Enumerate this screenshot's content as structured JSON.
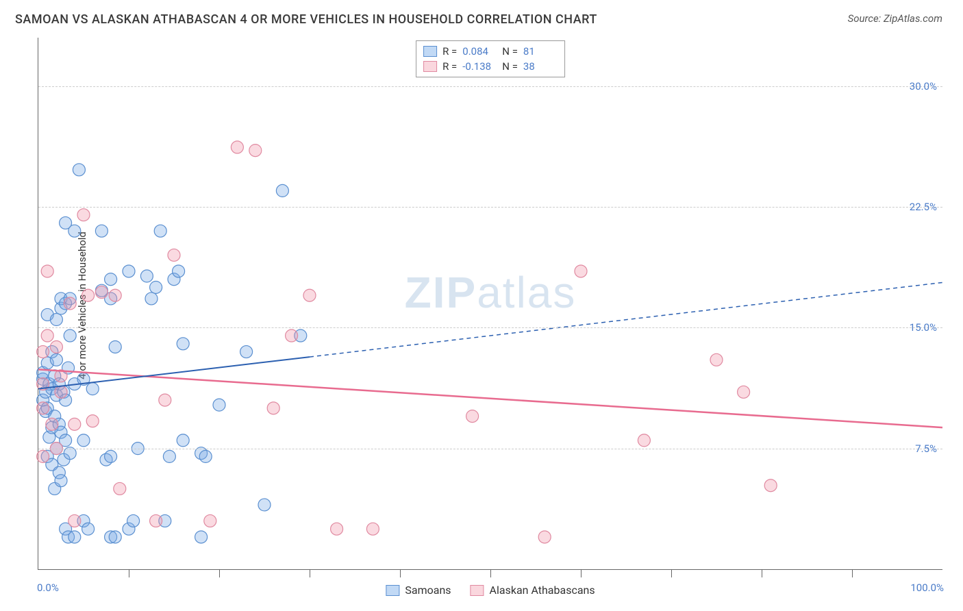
{
  "title": "SAMOAN VS ALASKAN ATHABASCAN 4 OR MORE VEHICLES IN HOUSEHOLD CORRELATION CHART",
  "source": "Source: ZipAtlas.com",
  "watermark_a": "ZIP",
  "watermark_b": "atlas",
  "ylabel": "4 or more Vehicles in Household",
  "chart": {
    "type": "scatter",
    "xlim": [
      0,
      100
    ],
    "ylim": [
      0,
      33
    ],
    "x_ticks": [
      0,
      100
    ],
    "x_tick_labels": [
      "0.0%",
      "100.0%"
    ],
    "x_minor_ticks": [
      10,
      20,
      30,
      40,
      50,
      60,
      70,
      80,
      90
    ],
    "y_gridlines": [
      7.5,
      15.0,
      22.5,
      30.0
    ],
    "y_tick_labels": [
      "7.5%",
      "15.0%",
      "22.5%",
      "30.0%"
    ],
    "background_color": "#ffffff",
    "grid_color": "#cccccc",
    "axis_color": "#666666",
    "tick_label_color": "#4a7bc8",
    "point_radius": 9,
    "series": {
      "samoans": {
        "label": "Samoans",
        "fill": "rgba(120,170,230,0.35)",
        "stroke": "#5a8fd0",
        "R": "0.084",
        "N": "81",
        "trend": {
          "y_at_x0": 11.2,
          "y_at_x100": 17.8,
          "solid_until_x": 30,
          "color": "#2b5fb0",
          "width": 2
        },
        "points": [
          [
            0.5,
            10.5
          ],
          [
            0.5,
            11.8
          ],
          [
            0.5,
            12.2
          ],
          [
            0.8,
            9.8
          ],
          [
            0.8,
            11.0
          ],
          [
            1.0,
            7.0
          ],
          [
            1.0,
            10.0
          ],
          [
            1.0,
            12.8
          ],
          [
            1.0,
            15.8
          ],
          [
            1.2,
            8.2
          ],
          [
            1.2,
            11.5
          ],
          [
            1.5,
            6.5
          ],
          [
            1.5,
            8.8
          ],
          [
            1.5,
            11.2
          ],
          [
            1.5,
            13.5
          ],
          [
            1.8,
            5.0
          ],
          [
            1.8,
            9.5
          ],
          [
            1.8,
            12.0
          ],
          [
            2.0,
            7.5
          ],
          [
            2.0,
            10.8
          ],
          [
            2.0,
            13.0
          ],
          [
            2.0,
            15.5
          ],
          [
            2.3,
            6.0
          ],
          [
            2.3,
            9.0
          ],
          [
            2.3,
            11.5
          ],
          [
            2.5,
            5.5
          ],
          [
            2.5,
            8.5
          ],
          [
            2.5,
            16.2
          ],
          [
            2.5,
            16.8
          ],
          [
            2.8,
            6.8
          ],
          [
            2.8,
            11.0
          ],
          [
            3.0,
            2.5
          ],
          [
            3.0,
            8.0
          ],
          [
            3.0,
            10.5
          ],
          [
            3.0,
            16.5
          ],
          [
            3.0,
            21.5
          ],
          [
            3.3,
            2.0
          ],
          [
            3.3,
            12.5
          ],
          [
            3.5,
            7.2
          ],
          [
            3.5,
            14.5
          ],
          [
            3.5,
            16.8
          ],
          [
            4.0,
            2.0
          ],
          [
            4.0,
            11.5
          ],
          [
            4.0,
            21.0
          ],
          [
            4.5,
            24.8
          ],
          [
            5.0,
            3.0
          ],
          [
            5.0,
            8.0
          ],
          [
            5.0,
            11.8
          ],
          [
            5.5,
            2.5
          ],
          [
            6.0,
            11.2
          ],
          [
            7.0,
            21.0
          ],
          [
            7.0,
            17.3
          ],
          [
            7.5,
            6.8
          ],
          [
            8.0,
            2.0
          ],
          [
            8.0,
            7.0
          ],
          [
            8.0,
            18.0
          ],
          [
            8.0,
            16.8
          ],
          [
            8.5,
            2.0
          ],
          [
            8.5,
            13.8
          ],
          [
            10.0,
            2.5
          ],
          [
            10.0,
            18.5
          ],
          [
            10.5,
            3.0
          ],
          [
            11.0,
            7.5
          ],
          [
            12.0,
            18.2
          ],
          [
            12.5,
            16.8
          ],
          [
            13.0,
            17.5
          ],
          [
            13.5,
            21.0
          ],
          [
            14.0,
            3.0
          ],
          [
            14.5,
            7.0
          ],
          [
            15.0,
            18.0
          ],
          [
            15.5,
            18.5
          ],
          [
            16.0,
            14.0
          ],
          [
            16.0,
            8.0
          ],
          [
            18.0,
            2.0
          ],
          [
            18.0,
            7.2
          ],
          [
            18.5,
            7.0
          ],
          [
            20.0,
            10.2
          ],
          [
            23.0,
            13.5
          ],
          [
            25.0,
            4.0
          ],
          [
            27.0,
            23.5
          ],
          [
            29.0,
            14.5
          ]
        ]
      },
      "athabascans": {
        "label": "Alaskan Athabascans",
        "fill": "rgba(240,150,170,0.35)",
        "stroke": "#e089a0",
        "R": "-0.138",
        "N": "38",
        "trend": {
          "y_at_x0": 12.4,
          "y_at_x100": 8.8,
          "solid_until_x": 100,
          "color": "#e86b8f",
          "width": 2.5
        },
        "points": [
          [
            0.5,
            7.0
          ],
          [
            0.5,
            10.0
          ],
          [
            0.5,
            11.5
          ],
          [
            0.5,
            13.5
          ],
          [
            1.0,
            14.5
          ],
          [
            1.0,
            18.5
          ],
          [
            1.5,
            9.0
          ],
          [
            2.0,
            7.5
          ],
          [
            2.0,
            13.8
          ],
          [
            2.5,
            11.0
          ],
          [
            2.5,
            12.0
          ],
          [
            3.5,
            16.5
          ],
          [
            4.0,
            3.0
          ],
          [
            4.0,
            9.0
          ],
          [
            5.0,
            22.0
          ],
          [
            5.5,
            17.0
          ],
          [
            6.0,
            9.2
          ],
          [
            7.0,
            17.2
          ],
          [
            8.5,
            17.0
          ],
          [
            9.0,
            5.0
          ],
          [
            13.0,
            3.0
          ],
          [
            14.0,
            10.5
          ],
          [
            15.0,
            19.5
          ],
          [
            19.0,
            3.0
          ],
          [
            22.0,
            26.2
          ],
          [
            24.0,
            26.0
          ],
          [
            26.0,
            10.0
          ],
          [
            28.0,
            14.5
          ],
          [
            30.0,
            17.0
          ],
          [
            33.0,
            2.5
          ],
          [
            37.0,
            2.5
          ],
          [
            48.0,
            9.5
          ],
          [
            56.0,
            2.0
          ],
          [
            60.0,
            18.5
          ],
          [
            67.0,
            8.0
          ],
          [
            75.0,
            13.0
          ],
          [
            78.0,
            11.0
          ],
          [
            81.0,
            5.2
          ]
        ]
      }
    }
  },
  "legend_top": {
    "rows": [
      {
        "swatch": "blue",
        "R": "0.084",
        "N": "81"
      },
      {
        "swatch": "pink",
        "R": "-0.138",
        "N": "38"
      }
    ]
  },
  "legend_bottom": [
    {
      "swatch": "blue",
      "label": "Samoans"
    },
    {
      "swatch": "pink",
      "label": "Alaskan Athabascans"
    }
  ]
}
